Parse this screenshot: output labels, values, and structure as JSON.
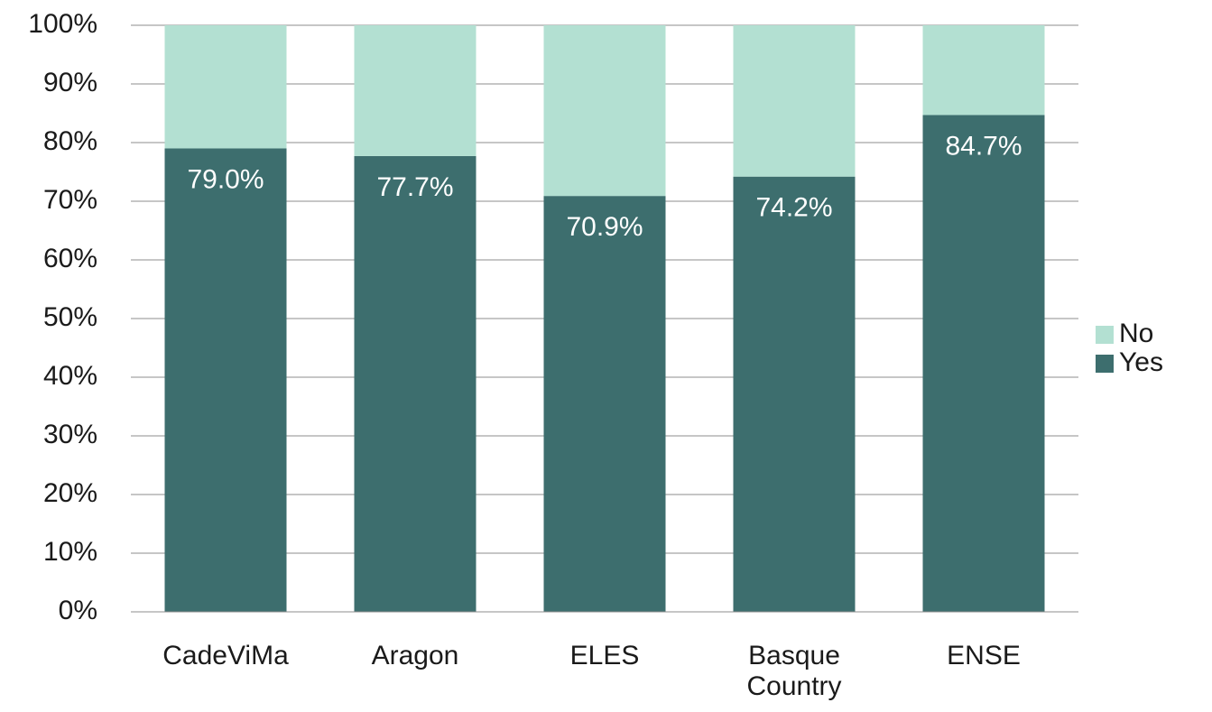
{
  "chart_data": {
    "type": "stacked_bar",
    "categories": [
      "CadeViMa",
      "Aragon",
      "ELES",
      "Basque Country",
      "ENSE"
    ],
    "series": [
      {
        "name": "Yes",
        "color": "#3d6e6e",
        "values": [
          79.0,
          77.7,
          70.9,
          74.2,
          84.7
        ],
        "value_labels": [
          "79.0%",
          "77.7%",
          "70.9%",
          "74.2%",
          "84.7%"
        ]
      },
      {
        "name": "No",
        "color": "#b3e0d2",
        "values": [
          21.0,
          22.3,
          29.1,
          25.8,
          15.3
        ]
      }
    ],
    "ylim": [
      0,
      100
    ],
    "yticks": [
      {
        "value": 0,
        "label": "0%"
      },
      {
        "value": 10,
        "label": "10%"
      },
      {
        "value": 20,
        "label": "20%"
      },
      {
        "value": 30,
        "label": "30%"
      },
      {
        "value": 40,
        "label": "40%"
      },
      {
        "value": 50,
        "label": "50%"
      },
      {
        "value": 60,
        "label": "60%"
      },
      {
        "value": 70,
        "label": "70%"
      },
      {
        "value": 80,
        "label": "80%"
      },
      {
        "value": 90,
        "label": "90%"
      },
      {
        "value": 100,
        "label": "100%"
      }
    ],
    "grid": true,
    "legend": "right"
  }
}
